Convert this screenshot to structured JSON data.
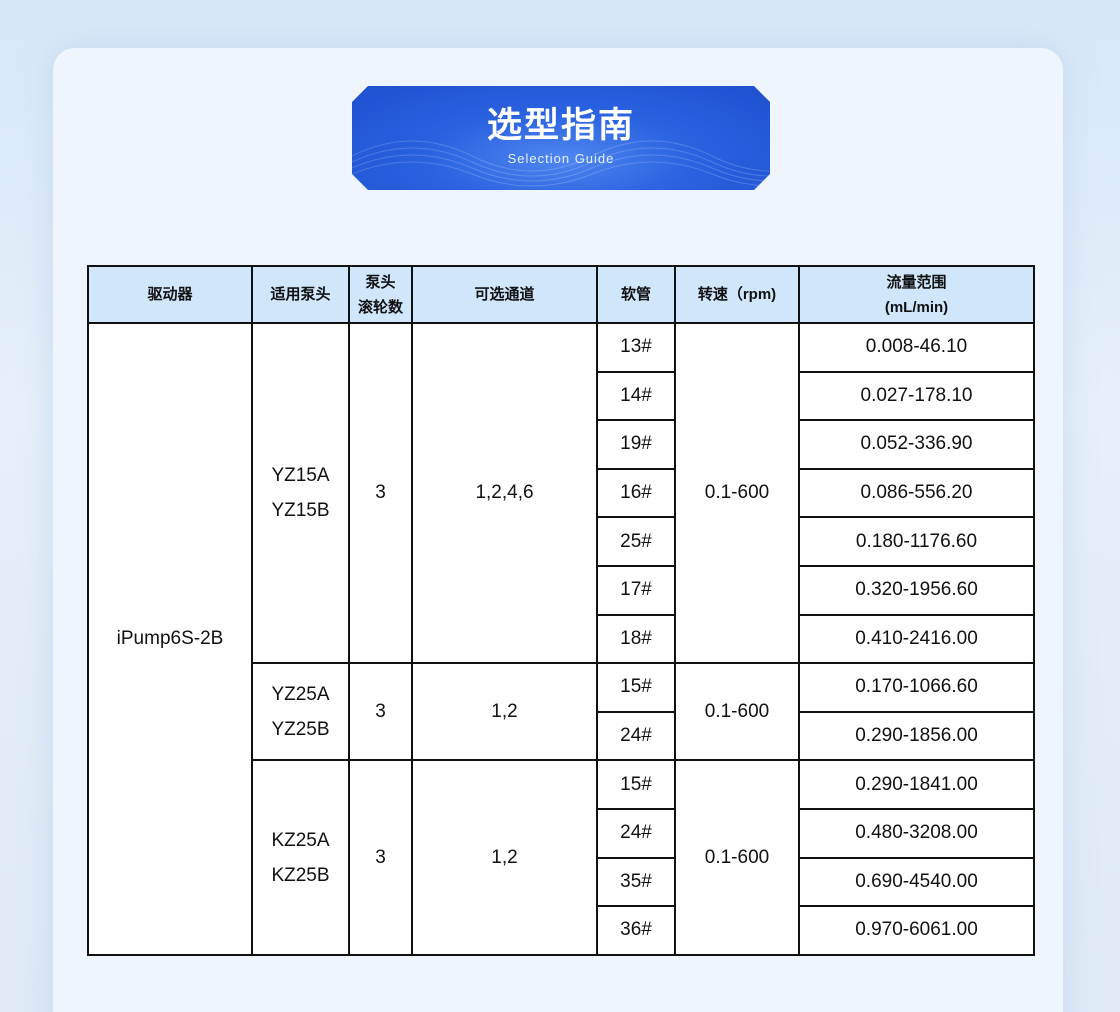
{
  "banner": {
    "title": "选型指南",
    "subtitle": "Selection  Guide"
  },
  "headers": [
    "驱动器",
    "适用泵头",
    "泵头滚轮数",
    "可选通道",
    "软管",
    "转速（rpm)",
    "流量范围(mL/min)"
  ],
  "header_parts": {
    "rollers_1": "泵头",
    "rollers_2": "滚轮数",
    "flow_1": "流量范围",
    "flow_2": "(mL/min)"
  },
  "driver": "iPump6S-2B",
  "groups": [
    {
      "head_1": "YZ15A",
      "head_2": "YZ15B",
      "rollers": "3",
      "channels": "1,2,4,6",
      "speed": "0.1-600",
      "rows": [
        {
          "tube": "13#",
          "flow": "0.008-46.10"
        },
        {
          "tube": "14#",
          "flow": "0.027-178.10"
        },
        {
          "tube": "19#",
          "flow": "0.052-336.90"
        },
        {
          "tube": "16#",
          "flow": "0.086-556.20"
        },
        {
          "tube": "25#",
          "flow": "0.180-1176.60"
        },
        {
          "tube": "17#",
          "flow": "0.320-1956.60"
        },
        {
          "tube": "18#",
          "flow": "0.410-2416.00"
        }
      ]
    },
    {
      "head_1": "YZ25A",
      "head_2": "YZ25B",
      "rollers": "3",
      "channels": "1,2",
      "speed": "0.1-600",
      "rows": [
        {
          "tube": "15#",
          "flow": "0.170-1066.60"
        },
        {
          "tube": "24#",
          "flow": "0.290-1856.00"
        }
      ]
    },
    {
      "head_1": "KZ25A",
      "head_2": "KZ25B",
      "rollers": "3",
      "channels": "1,2",
      "speed": "0.1-600",
      "rows": [
        {
          "tube": "15#",
          "flow": "0.290-1841.00"
        },
        {
          "tube": "24#",
          "flow": "0.480-3208.00"
        },
        {
          "tube": "35#",
          "flow": "0.690-4540.00"
        },
        {
          "tube": "36#",
          "flow": "0.970-6061.00"
        }
      ]
    }
  ]
}
